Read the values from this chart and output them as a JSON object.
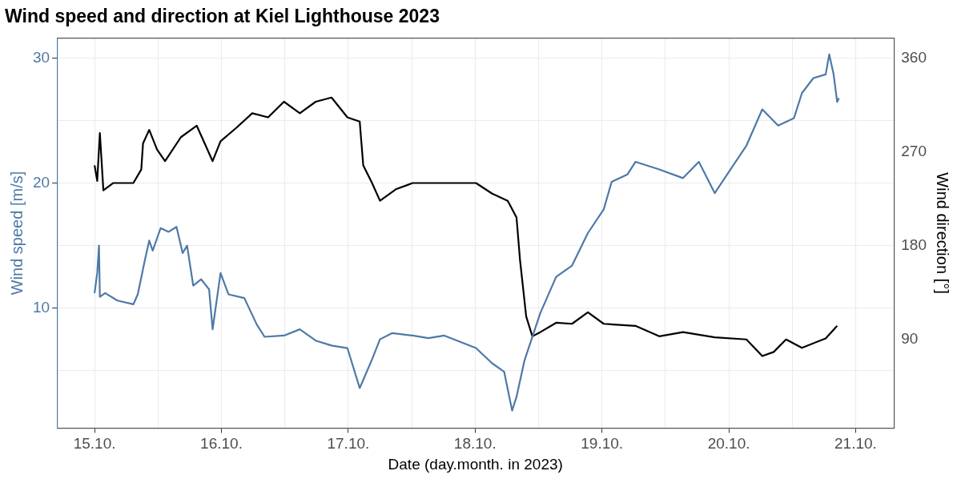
{
  "chart_data": {
    "type": "line",
    "title": "Wind speed and direction at Kiel Lighthouse 2023",
    "xlabel": "Date (day.month. in 2023)",
    "ylabel": "Wind speed [m/s]",
    "y2label": "Wind direction [°]",
    "xlim": [
      "2023-10-14T16:53",
      "2023-10-21T07:15"
    ],
    "xticks": [
      {
        "value": "2023-10-15",
        "label": "15.10."
      },
      {
        "value": "2023-10-15T12:00",
        "label": null
      },
      {
        "value": "2023-10-16",
        "label": "16.10."
      },
      {
        "value": "2023-10-16T12:00",
        "label": null
      },
      {
        "value": "2023-10-17",
        "label": "17.10."
      },
      {
        "value": "2023-10-17T12:00",
        "label": null
      },
      {
        "value": "2023-10-18",
        "label": "18.10."
      },
      {
        "value": "2023-10-18T12:00",
        "label": null
      },
      {
        "value": "2023-10-19",
        "label": "19.10."
      },
      {
        "value": "2023-10-19T12:00",
        "label": null
      },
      {
        "value": "2023-10-20",
        "label": "20.10."
      },
      {
        "value": "2023-10-20T12:00",
        "label": null
      },
      {
        "value": "2023-10-21",
        "label": "21.10."
      }
    ],
    "ylim": [
      0.4,
      31.6
    ],
    "yticks": [
      {
        "value": 5,
        "label": null
      },
      10,
      {
        "value": 15,
        "label": null
      },
      20,
      {
        "value": 25,
        "label": null
      },
      30
    ],
    "y2lim": [
      5,
      379
    ],
    "y2ticks": [
      90,
      180,
      270,
      360
    ],
    "grid": true,
    "series": [
      {
        "color": "#4e79a7",
        "axis": "y",
        "x": [
          "2023-10-15T00:00",
          "2023-10-15T00:30",
          "2023-10-15T00:50",
          "2023-10-15T01:00",
          "2023-10-15T02:00",
          "2023-10-15T04:20",
          "2023-10-15T07:20",
          "2023-10-15T08:10",
          "2023-10-15T09:30",
          "2023-10-15T10:20",
          "2023-10-15T11:00",
          "2023-10-15T12:30",
          "2023-10-15T14:00",
          "2023-10-15T15:30",
          "2023-10-15T16:40",
          "2023-10-15T17:30",
          "2023-10-15T18:40",
          "2023-10-15T20:10",
          "2023-10-15T21:40",
          "2023-10-15T22:20",
          "2023-10-15T23:50",
          "2023-10-16T01:20",
          "2023-10-16T04:20",
          "2023-10-16T06:40",
          "2023-10-16T08:10",
          "2023-10-16T11:50",
          "2023-10-16T14:50",
          "2023-10-16T17:50",
          "2023-10-16T20:50",
          "2023-10-16T23:50",
          "2023-10-17T02:10",
          "2023-10-17T04:30",
          "2023-10-17T06:00",
          "2023-10-17T08:20",
          "2023-10-17T12:10",
          "2023-10-17T15:10",
          "2023-10-17T18:10",
          "2023-10-17T21:10",
          "2023-10-18T00:10",
          "2023-10-18T03:10",
          "2023-10-18T05:30",
          "2023-10-18T07:00",
          "2023-10-18T07:50",
          "2023-10-18T09:20",
          "2023-10-18T12:20",
          "2023-10-18T15:20",
          "2023-10-18T18:20",
          "2023-10-18T21:20",
          "2023-10-19T00:20",
          "2023-10-19T01:50",
          "2023-10-19T04:50",
          "2023-10-19T06:20",
          "2023-10-19T10:50",
          "2023-10-19T15:20",
          "2023-10-19T18:20",
          "2023-10-19T21:20",
          "2023-10-20T00:20",
          "2023-10-20T03:20",
          "2023-10-20T06:20",
          "2023-10-20T09:20",
          "2023-10-20T12:20",
          "2023-10-20T13:50",
          "2023-10-20T16:00",
          "2023-10-20T18:20",
          "2023-10-20T19:00",
          "2023-10-20T19:50",
          "2023-10-20T20:30",
          "2023-10-20T20:50"
        ],
        "values": [
          11.2,
          12.8,
          15.0,
          10.9,
          11.2,
          10.6,
          10.3,
          11.1,
          13.8,
          15.4,
          14.6,
          16.4,
          16.1,
          16.5,
          14.4,
          15.0,
          11.8,
          12.3,
          11.5,
          8.3,
          12.8,
          11.1,
          10.8,
          8.7,
          7.7,
          7.8,
          8.3,
          7.4,
          7.0,
          6.8,
          3.6,
          5.9,
          7.5,
          8.0,
          7.8,
          7.6,
          7.8,
          7.3,
          6.8,
          5.6,
          4.9,
          1.8,
          2.9,
          5.8,
          9.6,
          12.5,
          13.4,
          16.0,
          17.9,
          20.1,
          20.7,
          21.7,
          21.1,
          20.4,
          21.7,
          19.2,
          21.1,
          23.0,
          25.9,
          24.6,
          25.2,
          27.2,
          28.4,
          28.7,
          30.3,
          28.7,
          26.5,
          26.8
        ]
      },
      {
        "color": "#000000",
        "axis": "y2",
        "x": [
          "2023-10-15T00:00",
          "2023-10-15T00:30",
          "2023-10-15T01:00",
          "2023-10-15T01:40",
          "2023-10-15T03:30",
          "2023-10-15T07:20",
          "2023-10-15T08:50",
          "2023-10-15T09:10",
          "2023-10-15T10:20",
          "2023-10-15T11:50",
          "2023-10-15T13:20",
          "2023-10-15T16:20",
          "2023-10-15T19:20",
          "2023-10-15T22:20",
          "2023-10-15T23:50",
          "2023-10-16T02:50",
          "2023-10-16T05:50",
          "2023-10-16T08:50",
          "2023-10-16T11:50",
          "2023-10-16T14:50",
          "2023-10-16T17:50",
          "2023-10-16T20:50",
          "2023-10-16T23:50",
          "2023-10-17T02:10",
          "2023-10-17T02:50",
          "2023-10-17T04:30",
          "2023-10-17T06:00",
          "2023-10-17T09:00",
          "2023-10-17T12:10",
          "2023-10-17T15:10",
          "2023-10-17T18:10",
          "2023-10-18T00:10",
          "2023-10-18T03:10",
          "2023-10-18T06:10",
          "2023-10-18T07:50",
          "2023-10-18T08:30",
          "2023-10-18T09:40",
          "2023-10-18T10:50",
          "2023-10-18T12:20",
          "2023-10-18T15:20",
          "2023-10-18T18:20",
          "2023-10-18T21:20",
          "2023-10-19T00:20",
          "2023-10-19T06:20",
          "2023-10-19T10:50",
          "2023-10-19T15:20",
          "2023-10-19T21:20",
          "2023-10-20T03:20",
          "2023-10-20T06:20",
          "2023-10-20T08:30",
          "2023-10-20T10:50",
          "2023-10-20T13:50",
          "2023-10-20T18:20",
          "2023-10-20T20:30"
        ],
        "values": [
          257,
          242,
          288,
          233,
          240,
          240,
          253,
          278,
          291,
          272,
          261,
          284,
          295,
          261,
          280,
          293,
          307,
          303,
          318,
          307,
          318,
          322,
          303,
          299,
          257,
          240,
          223,
          234,
          240,
          240,
          240,
          240,
          230,
          223,
          207,
          166,
          112,
          93,
          97,
          106,
          105,
          116,
          105,
          103,
          93,
          97,
          92,
          90,
          74,
          78,
          90,
          82,
          91,
          103
        ]
      }
    ]
  }
}
